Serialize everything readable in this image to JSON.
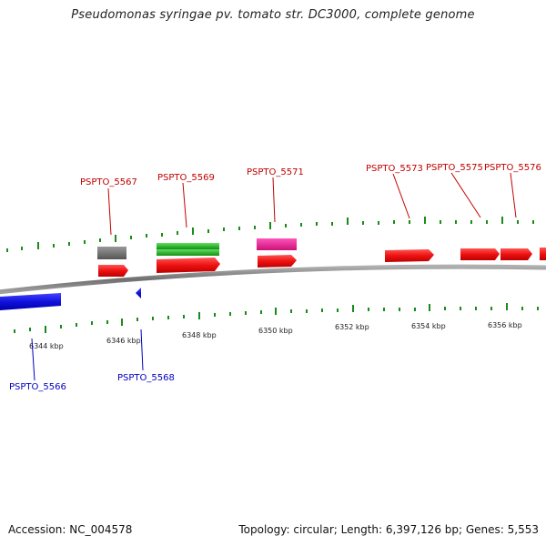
{
  "title": "Pseudomonas syringae pv. tomato str. DC3000, complete genome",
  "footer": {
    "accession": "Accession: NC_004578",
    "summary": "Topology: circular; Length: 6,397,126 bp; Genes: 5,553"
  },
  "colors": {
    "plus_label": "#c00000",
    "minus_label": "#0000c0",
    "tick": "#1a8a1a",
    "backbone": "#808080",
    "forward_gene": "#ee1111",
    "reverse_gene": "#1111dd",
    "rna": "#33bb33",
    "pseudo": "#707070",
    "other": "#ee2299"
  },
  "plus_labels": [
    {
      "id": "l5567",
      "text": "PSPTO_5567"
    },
    {
      "id": "l5569",
      "text": "PSPTO_5569"
    },
    {
      "id": "l5571",
      "text": "PSPTO_5571"
    },
    {
      "id": "l5573",
      "text": "PSPTO_5573"
    },
    {
      "id": "l5575",
      "text": "PSPTO_5575"
    },
    {
      "id": "l5576",
      "text": "PSPTO_5576"
    }
  ],
  "minus_labels": [
    {
      "id": "l5566",
      "text": "PSPTO_5566"
    },
    {
      "id": "l5568",
      "text": "PSPTO_5568"
    }
  ],
  "scale_labels": [
    {
      "id": "k6344",
      "text": "6344 kbp"
    },
    {
      "id": "k6346",
      "text": "6346 kbp"
    },
    {
      "id": "k6348",
      "text": "6348 kbp"
    },
    {
      "id": "k6350",
      "text": "6350 kbp"
    },
    {
      "id": "k6352",
      "text": "6352 kbp"
    },
    {
      "id": "k6354",
      "text": "6354 kbp"
    },
    {
      "id": "k6356",
      "text": "6356 kbp"
    }
  ]
}
